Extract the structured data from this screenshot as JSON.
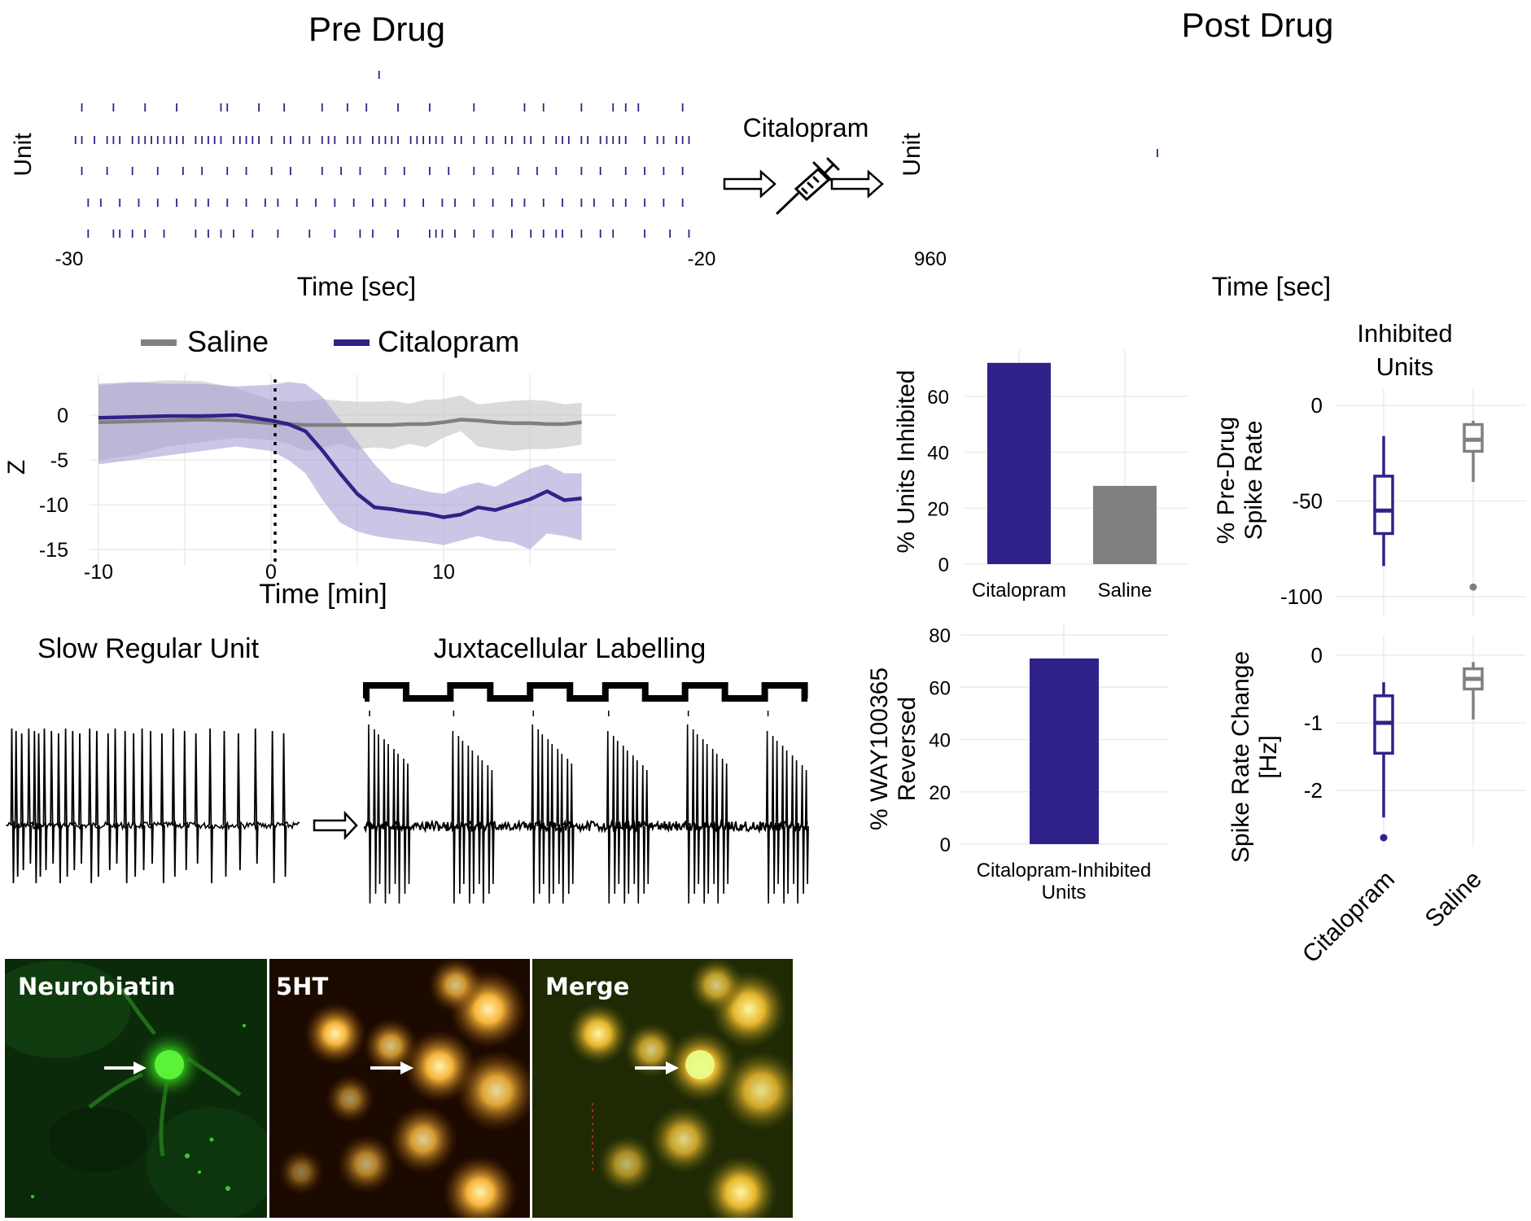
{
  "colors": {
    "citalopram": "#2f2288",
    "saline": "#7f8180",
    "citalopram_band": "#a99ed6",
    "saline_band": "#c6c8c6",
    "grid": "#ebebeb",
    "trace": "#000000"
  },
  "icons": [
    "hollow-arrow-icon",
    "syringe-icon",
    "white-arrow-icon"
  ],
  "raster": {
    "pre_title": "Pre Drug",
    "post_title": "Post Drug",
    "ylabel": "Unit",
    "xlabel": "Time [sec]",
    "pre_xtick_start": "-30",
    "pre_xtick_end": "-20",
    "post_xtick_start": "960",
    "drug_label": "Citalopram",
    "pre_range": [
      -30,
      -20
    ],
    "pre_units": [
      {
        "unit": 1,
        "spikes": [
          -25.1
        ]
      },
      {
        "unit": 2,
        "spikes": [
          -29.8,
          -29.3,
          -28.8,
          -28.3,
          -27.6,
          -27.5,
          -27.0,
          -26.6,
          -26.0,
          -25.6,
          -25.3,
          -24.8,
          -24.3,
          -23.6,
          -22.8,
          -22.5,
          -21.9,
          -21.4,
          -21.2,
          -21.0,
          -20.3
        ]
      },
      {
        "unit": 3,
        "spikes": [
          -29.9,
          -29.8,
          -29.6,
          -29.4,
          -29.3,
          -29.2,
          -29.0,
          -28.9,
          -28.8,
          -28.7,
          -28.6,
          -28.5,
          -28.4,
          -28.3,
          -28.2,
          -28.0,
          -27.9,
          -27.8,
          -27.7,
          -27.6,
          -27.4,
          -27.3,
          -27.2,
          -27.1,
          -27.0,
          -26.8,
          -26.6,
          -26.5,
          -26.3,
          -26.2,
          -26.0,
          -25.9,
          -25.8,
          -25.6,
          -25.5,
          -25.4,
          -25.2,
          -25.1,
          -25.0,
          -24.9,
          -24.8,
          -24.6,
          -24.5,
          -24.4,
          -24.3,
          -24.2,
          -24.1,
          -23.9,
          -23.8,
          -23.6,
          -23.4,
          -23.3,
          -23.1,
          -23.0,
          -22.8,
          -22.7,
          -22.5,
          -22.3,
          -22.2,
          -22.1,
          -21.9,
          -21.8,
          -21.6,
          -21.5,
          -21.4,
          -21.3,
          -21.2,
          -20.9,
          -20.7,
          -20.6,
          -20.4,
          -20.3,
          -20.2
        ]
      },
      {
        "unit": 4,
        "spikes": [
          -29.8,
          -29.4,
          -29.0,
          -28.6,
          -28.2,
          -27.9,
          -27.5,
          -27.2,
          -26.8,
          -26.5,
          -26.0,
          -25.7,
          -25.4,
          -25.0,
          -24.7,
          -24.3,
          -24.0,
          -23.6,
          -23.3,
          -22.9,
          -22.6,
          -22.3,
          -21.9,
          -21.6,
          -21.2,
          -20.9,
          -20.6,
          -20.3
        ]
      },
      {
        "unit": 5,
        "spikes": [
          -29.7,
          -29.5,
          -29.2,
          -28.9,
          -28.6,
          -28.3,
          -28.0,
          -27.8,
          -27.5,
          -27.2,
          -26.9,
          -26.7,
          -26.4,
          -26.1,
          -25.8,
          -25.5,
          -25.2,
          -25.0,
          -24.7,
          -24.4,
          -24.1,
          -23.9,
          -23.6,
          -23.3,
          -23.0,
          -22.8,
          -22.5,
          -22.2,
          -21.9,
          -21.7,
          -21.4,
          -21.2,
          -20.9,
          -20.6,
          -20.3
        ]
      },
      {
        "unit": 6,
        "spikes": [
          -29.7,
          -29.3,
          -29.2,
          -29.0,
          -28.8,
          -28.5,
          -28.0,
          -27.8,
          -27.6,
          -27.4,
          -27.1,
          -26.7,
          -26.2,
          -25.8,
          -25.4,
          -25.2,
          -24.8,
          -24.3,
          -24.2,
          -24.1,
          -23.9,
          -23.6,
          -23.3,
          -23.0,
          -22.7,
          -22.5,
          -22.3,
          -22.2,
          -21.9,
          -21.6,
          -21.4,
          -20.9,
          -20.5,
          -20.2
        ]
      }
    ],
    "post_units": [
      {
        "unit": 2,
        "spikes": [
          0.37
        ]
      }
    ]
  },
  "zscore_chart": {
    "legend": [
      "Saline",
      "Citalopram"
    ],
    "ylabel": "Z",
    "xlabel": "Time [min]",
    "yticks": [
      "0",
      "-5",
      "-10",
      "-15"
    ],
    "xticks": [
      "-10",
      "0",
      "10"
    ],
    "xlim": [
      -10.5,
      19
    ],
    "ylim": [
      -16,
      4
    ]
  },
  "chart_data": [
    {
      "type": "line",
      "xlabel": "Time [min]",
      "ylabel": "Z",
      "x": [
        -10,
        -8,
        -6,
        -4,
        -2,
        0,
        1,
        2,
        3,
        4,
        5,
        6,
        7,
        8,
        9,
        10,
        11,
        12,
        13,
        14,
        15,
        16,
        17,
        18
      ],
      "series": [
        {
          "name": "Saline",
          "values": [
            -0.8,
            -0.7,
            -0.6,
            -0.5,
            -0.6,
            -0.9,
            -1.0,
            -1.1,
            -1.1,
            -1.1,
            -1.1,
            -1.1,
            -1.1,
            -1.0,
            -1.0,
            -0.8,
            -0.5,
            -0.6,
            -0.8,
            -0.9,
            -0.9,
            -1.0,
            -1.0,
            -0.8
          ],
          "lower": [
            -5.0,
            -4.5,
            -3.5,
            -3.0,
            -2.5,
            -2.8,
            -3.2,
            -4.0,
            -3.6,
            -3.2,
            -3.8,
            -3.6,
            -3.8,
            -3.2,
            -3.6,
            -2.5,
            -1.8,
            -3.5,
            -3.8,
            -4.0,
            -3.8,
            -3.8,
            -3.6,
            -3.3
          ],
          "upper": [
            3.3,
            3.6,
            3.9,
            3.8,
            3.0,
            1.7,
            1.5,
            1.6,
            1.8,
            1.6,
            1.5,
            1.5,
            1.6,
            1.3,
            1.7,
            1.8,
            2.2,
            1.2,
            1.4,
            1.6,
            1.7,
            1.6,
            1.2,
            1.4
          ]
        },
        {
          "name": "Citalopram",
          "values": [
            -0.3,
            -0.2,
            -0.1,
            -0.1,
            0.0,
            -0.6,
            -1.0,
            -1.8,
            -4.0,
            -6.5,
            -8.8,
            -10.3,
            -10.5,
            -10.8,
            -11.0,
            -11.4,
            -11.1,
            -10.3,
            -10.6,
            -10.0,
            -9.4,
            -8.5,
            -9.5,
            -9.3
          ],
          "lower": [
            -5.5,
            -5.0,
            -4.5,
            -4.0,
            -3.5,
            -4.0,
            -5.0,
            -6.5,
            -9.5,
            -12.0,
            -13.0,
            -13.5,
            -13.8,
            -14.0,
            -14.2,
            -14.5,
            -14.0,
            -13.5,
            -14.0,
            -14.2,
            -15.0,
            -13.2,
            -13.5,
            -14.0
          ],
          "upper": [
            3.5,
            3.7,
            3.5,
            3.5,
            3.2,
            3.4,
            3.7,
            3.5,
            2.0,
            -0.5,
            -3.0,
            -5.5,
            -7.5,
            -8.0,
            -8.5,
            -8.8,
            -8.0,
            -7.5,
            -8.0,
            -7.0,
            -6.0,
            -5.5,
            -6.5,
            -6.5
          ]
        }
      ],
      "annotations": [
        "dotted vertical line at 0 min"
      ],
      "ylim": [
        -16,
        4
      ],
      "xlim": [
        -10.5,
        19
      ],
      "grid": true,
      "legend_position": "top"
    },
    {
      "type": "bar",
      "categories": [
        "Citalopram",
        "Saline"
      ],
      "values": [
        72,
        28
      ],
      "ylabel": "% Units Inhibited",
      "yticks": [
        "0",
        "20",
        "40",
        "60"
      ],
      "ylim": [
        0,
        75
      ],
      "grid": true
    },
    {
      "type": "bar",
      "categories": [
        "Citalopram-Inhibited\nUnits"
      ],
      "values": [
        71
      ],
      "ylabel": "% WAY100365\nReversed",
      "yticks": [
        "0",
        "20",
        "40",
        "60",
        "80"
      ],
      "ylim": [
        0,
        80
      ],
      "grid": true
    },
    {
      "type": "box",
      "title": "Inhibited\nUnits",
      "ylabel": "% Pre-Drug\nSpike Rate",
      "yticks": [
        "0",
        "-50",
        "-100"
      ],
      "ylim": [
        -100,
        0
      ],
      "groups": [
        {
          "name": "Citalopram",
          "min": -84,
          "q1": -67,
          "median": -55,
          "q3": -37,
          "max": -16,
          "outliers": []
        },
        {
          "name": "Saline",
          "min": -40,
          "q1": -24,
          "median": -18,
          "q3": -10,
          "max": -8,
          "outliers": [
            -95
          ]
        }
      ]
    },
    {
      "type": "box",
      "ylabel": "Spike Rate Change\n[Hz]",
      "yticks": [
        "0",
        "-1",
        "-2"
      ],
      "ylim": [
        -2.6,
        0.1
      ],
      "xticks": [
        "Citalopram",
        "Saline"
      ],
      "groups": [
        {
          "name": "Citalopram",
          "min": -2.4,
          "q1": -1.45,
          "median": -1.0,
          "q3": -0.6,
          "max": -0.4,
          "outliers": [
            -2.7
          ]
        },
        {
          "name": "Saline",
          "min": -0.95,
          "q1": -0.5,
          "median": -0.35,
          "q3": -0.2,
          "max": -0.1,
          "outliers": []
        }
      ]
    }
  ],
  "bar1": {
    "ylabel": "% Units Inhibited",
    "yticks": [
      "0",
      "20",
      "40",
      "60"
    ],
    "xticks": [
      "Citalopram",
      "Saline"
    ]
  },
  "bar2": {
    "ylabel_line1": "% WAY100365",
    "ylabel_line2": "Reversed",
    "yticks": [
      "0",
      "20",
      "40",
      "60",
      "80"
    ],
    "xtick_line1": "Citalopram-Inhibited",
    "xtick_line2": "Units"
  },
  "box1": {
    "title_line1": "Inhibited",
    "title_line2": "Units",
    "ylabel_line1": "% Pre-Drug",
    "ylabel_line2": "Spike Rate",
    "yticks": [
      "0",
      "-50",
      "-100"
    ]
  },
  "box2": {
    "ylabel_line1": "Spike Rate Change",
    "ylabel_line2": "[Hz]",
    "yticks": [
      "0",
      "-1",
      "-2"
    ],
    "xticks": [
      "Citalopram",
      "Saline"
    ]
  },
  "traces": {
    "slow_title": "Slow Regular Unit",
    "juxta_title": "Juxtacellular Labelling",
    "slow_spike_times": [
      0.01,
      0.025,
      0.045,
      0.07,
      0.09,
      0.105,
      0.125,
      0.15,
      0.175,
      0.2,
      0.225,
      0.25,
      0.285,
      0.31,
      0.35,
      0.375,
      0.41,
      0.44,
      0.47,
      0.5,
      0.54,
      0.58,
      0.62,
      0.66,
      0.71,
      0.76,
      0.81,
      0.87,
      0.93,
      0.97
    ],
    "juxta_pulse_starts": [
      0.0,
      0.19,
      0.37,
      0.54,
      0.72,
      0.9
    ],
    "juxta_pulse_width": 0.09
  },
  "histology": {
    "panels": [
      "Neurobiatin",
      "5HT",
      "Merge"
    ]
  }
}
